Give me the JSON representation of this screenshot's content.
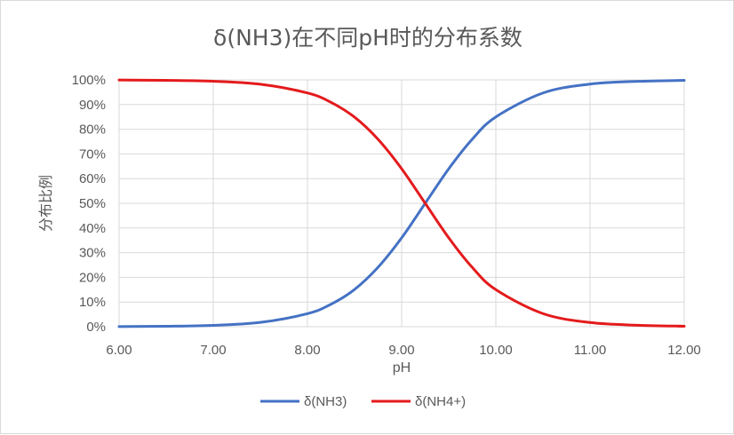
{
  "chart_data": {
    "type": "line",
    "title": "δ(NH3)在不同pH时的分布系数",
    "xlabel": "pH",
    "ylabel": "分布比例",
    "xlim": [
      6,
      12
    ],
    "ylim": [
      0,
      1
    ],
    "x_ticks": [
      "6.00",
      "7.00",
      "8.00",
      "9.00",
      "10.00",
      "11.00",
      "12.00"
    ],
    "y_ticks": [
      "0%",
      "10%",
      "20%",
      "30%",
      "40%",
      "50%",
      "60%",
      "70%",
      "80%",
      "90%",
      "100%"
    ],
    "grid": true,
    "legend": "bottom",
    "x": [
      6.0,
      6.5,
      7.0,
      7.5,
      8.0,
      8.25,
      8.5,
      8.75,
      9.0,
      9.25,
      9.5,
      9.75,
      10.0,
      10.5,
      11.0,
      11.5,
      12.0
    ],
    "series": [
      {
        "name": "δ(NH3)",
        "color": "#4472c4",
        "values": [
          0.0005,
          0.0018,
          0.0056,
          0.0175,
          0.053,
          0.091,
          0.151,
          0.241,
          0.36,
          0.5,
          0.64,
          0.76,
          0.85,
          0.947,
          0.983,
          0.994,
          0.998
        ]
      },
      {
        "name": "δ(NH4+)",
        "color": "#e41a1c",
        "values": [
          0.9995,
          0.9982,
          0.9944,
          0.9825,
          0.947,
          0.909,
          0.849,
          0.759,
          0.64,
          0.5,
          0.36,
          0.24,
          0.15,
          0.053,
          0.017,
          0.006,
          0.002
        ]
      }
    ]
  }
}
